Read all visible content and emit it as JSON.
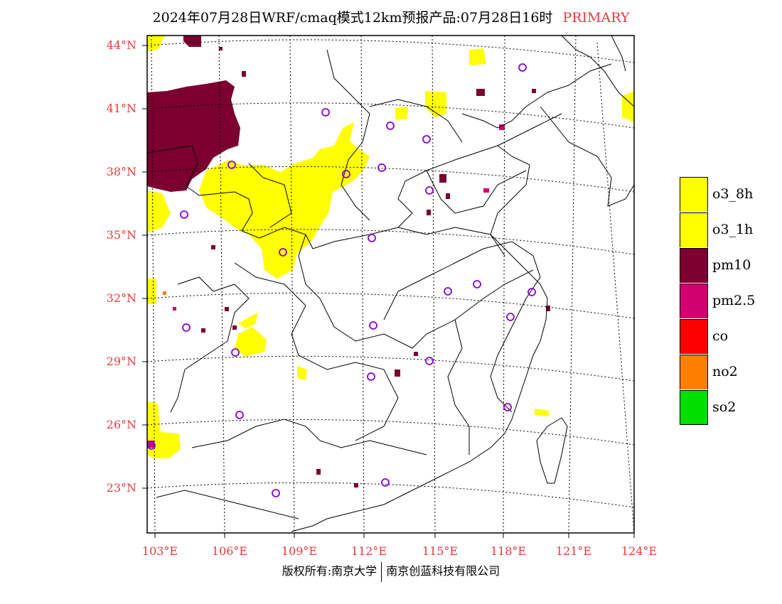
{
  "title": {
    "text": "2024年07月28日WRF/cmaq模式12km预报产品:07月28日16时",
    "tag": "PRIMARY"
  },
  "axes": {
    "lat_labels": [
      "44°N",
      "41°N",
      "38°N",
      "35°N",
      "32°N",
      "29°N",
      "26°N",
      "23°N"
    ],
    "lon_labels": [
      "103°E",
      "106°E",
      "109°E",
      "112°E",
      "115°E",
      "118°E",
      "121°E",
      "124°E"
    ]
  },
  "legend": {
    "items": [
      {
        "label": "o3_8h",
        "color": "#ffff00"
      },
      {
        "label": "o3_1h",
        "color": "#ffff00"
      },
      {
        "label": "pm10",
        "color": "#7b0030"
      },
      {
        "label": "pm2.5",
        "color": "#d0006f"
      },
      {
        "label": "co",
        "color": "#ff0000"
      },
      {
        "label": "no2",
        "color": "#ff8000"
      },
      {
        "label": "so2",
        "color": "#00e000"
      }
    ]
  },
  "footer": {
    "left": "版权所有:南京大学",
    "right": "南京创蓝科技有限公司"
  }
}
